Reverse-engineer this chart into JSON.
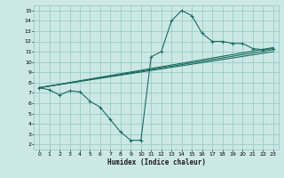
{
  "xlabel": "Humidex (Indice chaleur)",
  "bg_color": "#cce8e5",
  "grid_color": "#99ccc8",
  "line_color": "#1a6b60",
  "xlim": [
    -0.5,
    23.5
  ],
  "ylim": [
    1.5,
    15.5
  ],
  "xticks": [
    0,
    1,
    2,
    3,
    4,
    5,
    6,
    7,
    8,
    9,
    10,
    11,
    12,
    13,
    14,
    15,
    16,
    17,
    18,
    19,
    20,
    21,
    22,
    23
  ],
  "yticks": [
    2,
    3,
    4,
    5,
    6,
    7,
    8,
    9,
    10,
    11,
    12,
    13,
    14,
    15
  ],
  "line1_x": [
    0,
    1,
    2,
    3,
    4,
    5,
    6,
    7,
    8,
    9,
    10,
    11,
    12,
    13,
    14,
    15,
    16,
    17,
    18,
    19,
    20,
    21,
    22,
    23
  ],
  "line1_y": [
    7.5,
    7.3,
    6.8,
    7.2,
    7.1,
    6.2,
    5.6,
    4.4,
    3.2,
    2.4,
    2.4,
    10.5,
    11.0,
    14.0,
    15.0,
    14.5,
    12.8,
    12.0,
    12.0,
    11.8,
    11.8,
    11.3,
    11.2,
    11.3
  ],
  "line2_x": [
    0,
    23
  ],
  "line2_y": [
    7.5,
    11.2
  ],
  "line3_x": [
    0,
    23
  ],
  "line3_y": [
    7.5,
    11.4
  ],
  "line4_x": [
    0,
    23
  ],
  "line4_y": [
    7.5,
    11.0
  ]
}
